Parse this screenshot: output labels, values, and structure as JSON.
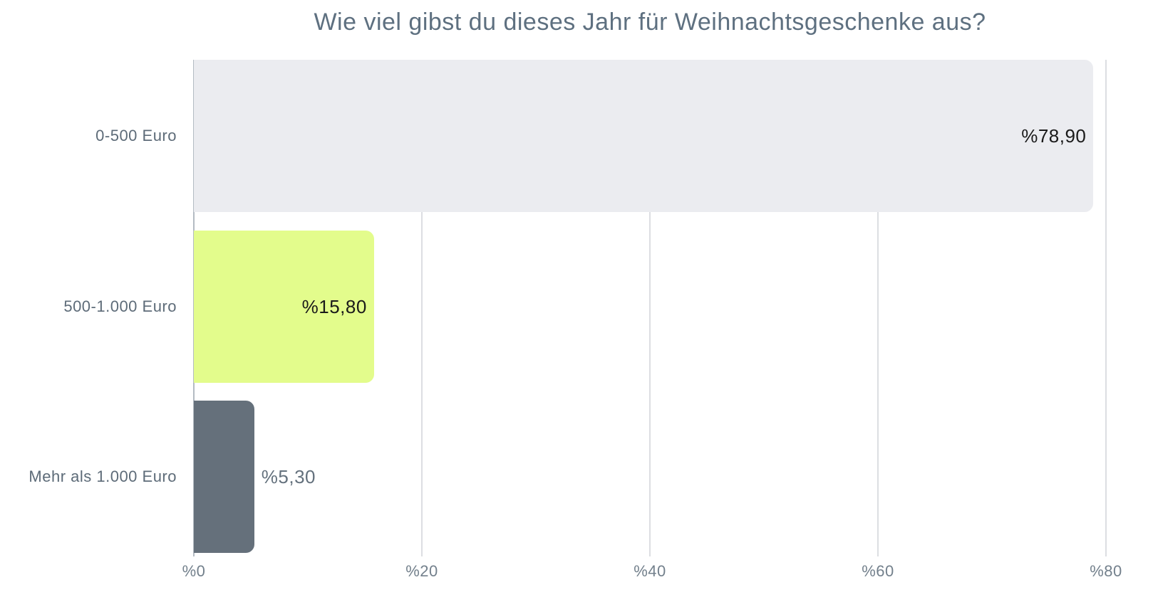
{
  "chart_data": {
    "type": "bar",
    "orientation": "horizontal",
    "title": "Wie viel gibst du dieses Jahr für Weihnachtsgeschenke aus?",
    "categories": [
      "0-500 Euro",
      "500-1.000 Euro",
      "Mehr als 1.000 Euro"
    ],
    "values": [
      78.9,
      15.8,
      5.3
    ],
    "value_labels": [
      "%78,90",
      "%15,80",
      "%5,30"
    ],
    "value_label_placement": [
      "inside",
      "inside",
      "outside"
    ],
    "x_ticks": [
      "%0",
      "%20",
      "%40",
      "%60",
      "%80"
    ],
    "x_tick_values": [
      0,
      20,
      40,
      60,
      80
    ],
    "xlim": [
      0,
      80
    ],
    "xlabel": "",
    "ylabel": "",
    "grid": "vertical-gridlines",
    "legend": "none",
    "bar_colors": [
      "#ebecf0",
      "#e3fc8c",
      "#65707b"
    ]
  },
  "colors": {
    "background": "#ffffff",
    "title_text": "#5e7080",
    "category_label_text": "#5d6b78",
    "tick_label_text": "#73808c",
    "gridline": "#dcdee2",
    "axis_line": "#b4bbc3",
    "value_label_inside": "#1a1a1a",
    "value_label_outside": "#64717d"
  }
}
